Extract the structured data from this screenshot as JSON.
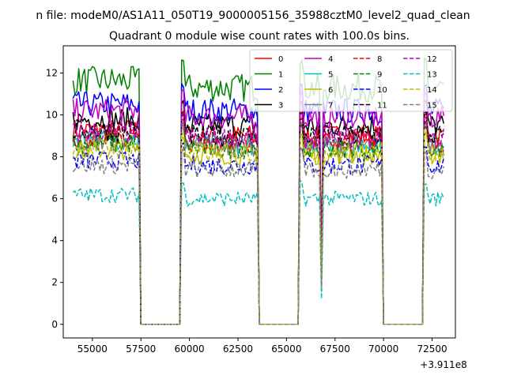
{
  "figure": {
    "suptitle": "n file: modeM0/AS1A11_050T19_9000005156_35988cztM0_level2_quad_clean"
  },
  "chart_data": {
    "type": "line",
    "title": "Quadrant 0 module wise count rates with 100.0s bins.",
    "xlabel": "",
    "ylabel": "",
    "x_offset_label": "+3.911e8",
    "xlim": [
      53500,
      73700
    ],
    "ylim": [
      -0.65,
      13.3
    ],
    "x_ticks": [
      55000,
      57500,
      60000,
      62500,
      65000,
      67500,
      70000,
      72500
    ],
    "x_tick_labels": [
      "55000",
      "57500",
      "60000",
      "62500",
      "65000",
      "67500",
      "70000",
      "72500"
    ],
    "y_ticks": [
      0,
      2,
      4,
      6,
      8,
      10,
      12
    ],
    "y_tick_labels": [
      "0",
      "2",
      "4",
      "6",
      "8",
      "10",
      "12"
    ],
    "x_start": 54000,
    "bin_size": 100,
    "gaps": [
      {
        "start": 57500,
        "end": 59500
      },
      {
        "start": 63600,
        "end": 65600
      },
      {
        "start": 70000,
        "end": 72000
      }
    ],
    "dip": {
      "x": 66800,
      "factor": 0.2
    },
    "x_end": 73100,
    "legend_position": "upper-right",
    "legend_columns": 4,
    "series": [
      {
        "name": "0",
        "color": "#ff0000",
        "dash": "solid",
        "level": 9.0
      },
      {
        "name": "1",
        "color": "#008000",
        "dash": "solid",
        "level": 11.3
      },
      {
        "name": "2",
        "color": "#0000ff",
        "dash": "solid",
        "level": 10.2
      },
      {
        "name": "3",
        "color": "#000000",
        "dash": "solid",
        "level": 9.5
      },
      {
        "name": "4",
        "color": "#bf00bf",
        "dash": "solid",
        "level": 9.9
      },
      {
        "name": "5",
        "color": "#00bfbf",
        "dash": "solid",
        "level": 8.6
      },
      {
        "name": "6",
        "color": "#bfbf00",
        "dash": "solid",
        "level": 8.1
      },
      {
        "name": "7",
        "color": "#808080",
        "dash": "solid",
        "level": 8.5
      },
      {
        "name": "8",
        "color": "#ff0000",
        "dash": "dashed",
        "level": 8.7
      },
      {
        "name": "9",
        "color": "#008000",
        "dash": "dashed",
        "level": 8.4
      },
      {
        "name": "10",
        "color": "#0000ff",
        "dash": "dashed",
        "level": 7.6
      },
      {
        "name": "11",
        "color": "#000000",
        "dash": "dashed",
        "level": 9.0
      },
      {
        "name": "12",
        "color": "#bf00bf",
        "dash": "dashed",
        "level": 8.9
      },
      {
        "name": "13",
        "color": "#00bfbf",
        "dash": "dashed",
        "level": 6.0
      },
      {
        "name": "14",
        "color": "#bfbf00",
        "dash": "dashed",
        "level": 8.2
      },
      {
        "name": "15",
        "color": "#808080",
        "dash": "dashed",
        "level": 7.4
      }
    ]
  }
}
